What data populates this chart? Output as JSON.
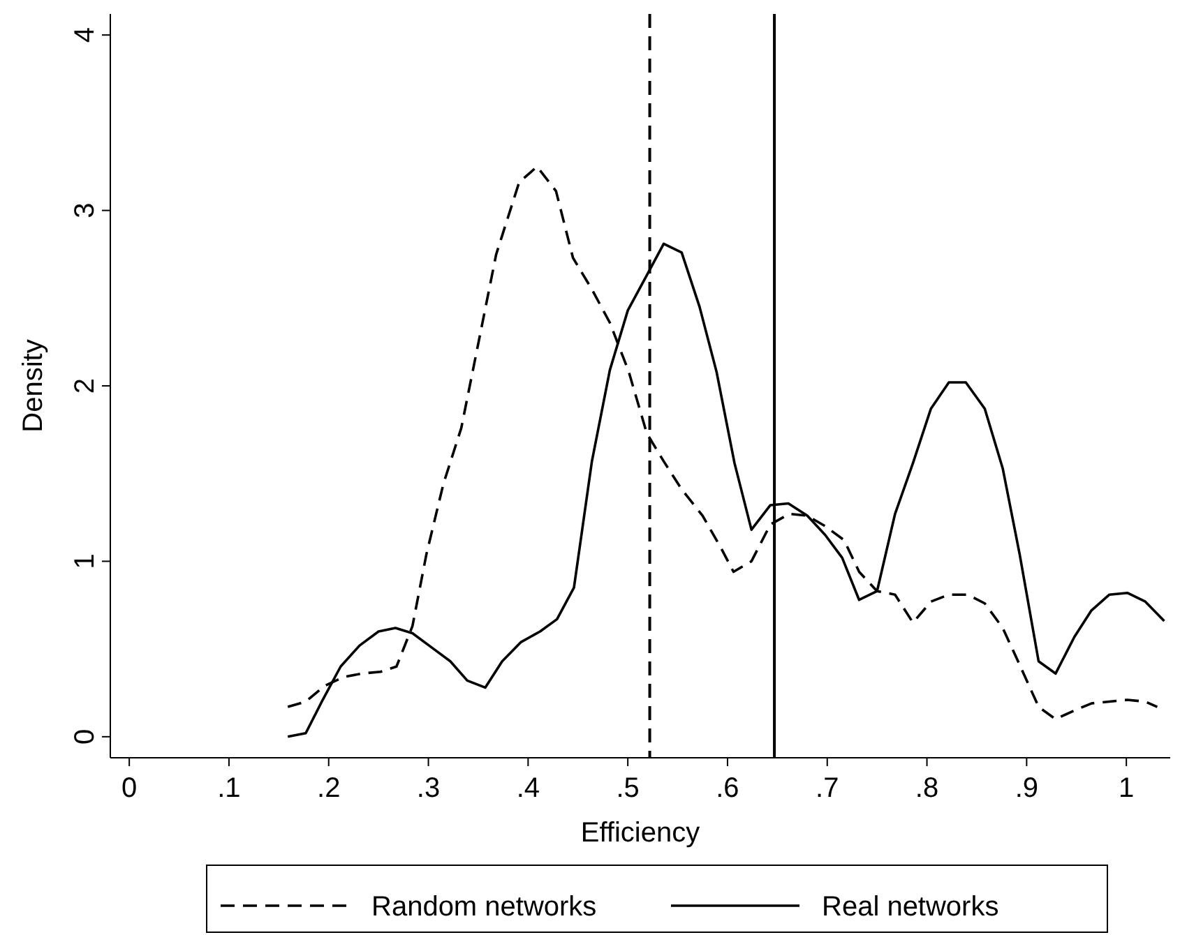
{
  "chart_data": {
    "type": "line",
    "xlabel": "Efficiency",
    "ylabel": "Density",
    "xlim": [
      -0.019,
      1.044
    ],
    "ylim": [
      -0.12,
      4.12
    ],
    "xticks": [
      0,
      {
        "value": 0.1,
        "label": ".1"
      },
      {
        "value": 0.2,
        "label": ".2"
      },
      {
        "value": 0.3,
        "label": ".3"
      },
      {
        "value": 0.4,
        "label": ".4"
      },
      {
        "value": 0.5,
        "label": ".5"
      },
      {
        "value": 0.6,
        "label": ".6"
      },
      {
        "value": 0.7,
        "label": ".7"
      },
      {
        "value": 0.8,
        "label": ".8"
      },
      {
        "value": 0.9,
        "label": ".9"
      },
      1
    ],
    "yticks": [
      0,
      1,
      2,
      3,
      4
    ],
    "grid": false,
    "legend": "bottom",
    "marker": "none",
    "series": [
      {
        "name": "Random networks",
        "color": "#000000",
        "line_style": "dashed",
        "x": [
          0.159,
          0.177,
          0.196,
          0.215,
          0.233,
          0.252,
          0.268,
          0.284,
          0.298,
          0.315,
          0.333,
          0.35,
          0.368,
          0.391,
          0.409,
          0.428,
          0.445,
          0.464,
          0.482,
          0.501,
          0.519,
          0.536,
          0.554,
          0.575,
          0.594,
          0.606,
          0.624,
          0.643,
          0.662,
          0.68,
          0.698,
          0.717,
          0.732,
          0.75,
          0.768,
          0.786,
          0.804,
          0.822,
          0.841,
          0.858,
          0.876,
          0.893,
          0.912,
          0.929,
          0.948,
          0.965,
          0.983,
          1.001,
          1.019,
          1.031
        ],
        "values": [
          0.17,
          0.2,
          0.29,
          0.34,
          0.36,
          0.37,
          0.4,
          0.63,
          1.04,
          1.44,
          1.76,
          2.24,
          2.75,
          3.16,
          3.25,
          3.11,
          2.73,
          2.55,
          2.36,
          2.08,
          1.73,
          1.57,
          1.41,
          1.26,
          1.07,
          0.94,
          1.0,
          1.21,
          1.27,
          1.26,
          1.2,
          1.12,
          0.94,
          0.83,
          0.81,
          0.65,
          0.77,
          0.81,
          0.81,
          0.76,
          0.62,
          0.41,
          0.17,
          0.1,
          0.15,
          0.19,
          0.2,
          0.21,
          0.2,
          0.17
        ]
      },
      {
        "name": "Real networks",
        "color": "#000000",
        "line_style": "solid",
        "x": [
          0.159,
          0.177,
          0.194,
          0.212,
          0.231,
          0.25,
          0.267,
          0.284,
          0.303,
          0.322,
          0.339,
          0.357,
          0.374,
          0.393,
          0.412,
          0.429,
          0.446,
          0.464,
          0.482,
          0.5,
          0.519,
          0.536,
          0.554,
          0.572,
          0.589,
          0.607,
          0.624,
          0.643,
          0.661,
          0.68,
          0.698,
          0.715,
          0.732,
          0.75,
          0.768,
          0.786,
          0.804,
          0.822,
          0.839,
          0.858,
          0.876,
          0.893,
          0.912,
          0.929,
          0.948,
          0.965,
          0.983,
          1.001,
          1.019,
          1.038
        ],
        "values": [
          0.0,
          0.02,
          0.21,
          0.4,
          0.52,
          0.6,
          0.62,
          0.59,
          0.51,
          0.43,
          0.32,
          0.28,
          0.43,
          0.54,
          0.6,
          0.67,
          0.85,
          1.57,
          2.09,
          2.43,
          2.63,
          2.81,
          2.76,
          2.45,
          2.08,
          1.56,
          1.18,
          1.32,
          1.33,
          1.26,
          1.15,
          1.02,
          0.78,
          0.83,
          1.27,
          1.56,
          1.87,
          2.02,
          2.02,
          1.87,
          1.53,
          1.04,
          0.43,
          0.36,
          0.57,
          0.72,
          0.81,
          0.82,
          0.77,
          0.66
        ]
      }
    ],
    "ref_lines": [
      {
        "axis": "x",
        "value": 0.522,
        "color": "#000000",
        "line_style": "dashed"
      },
      {
        "axis": "x",
        "value": 0.647,
        "color": "#000000",
        "line_style": "solid"
      }
    ]
  }
}
